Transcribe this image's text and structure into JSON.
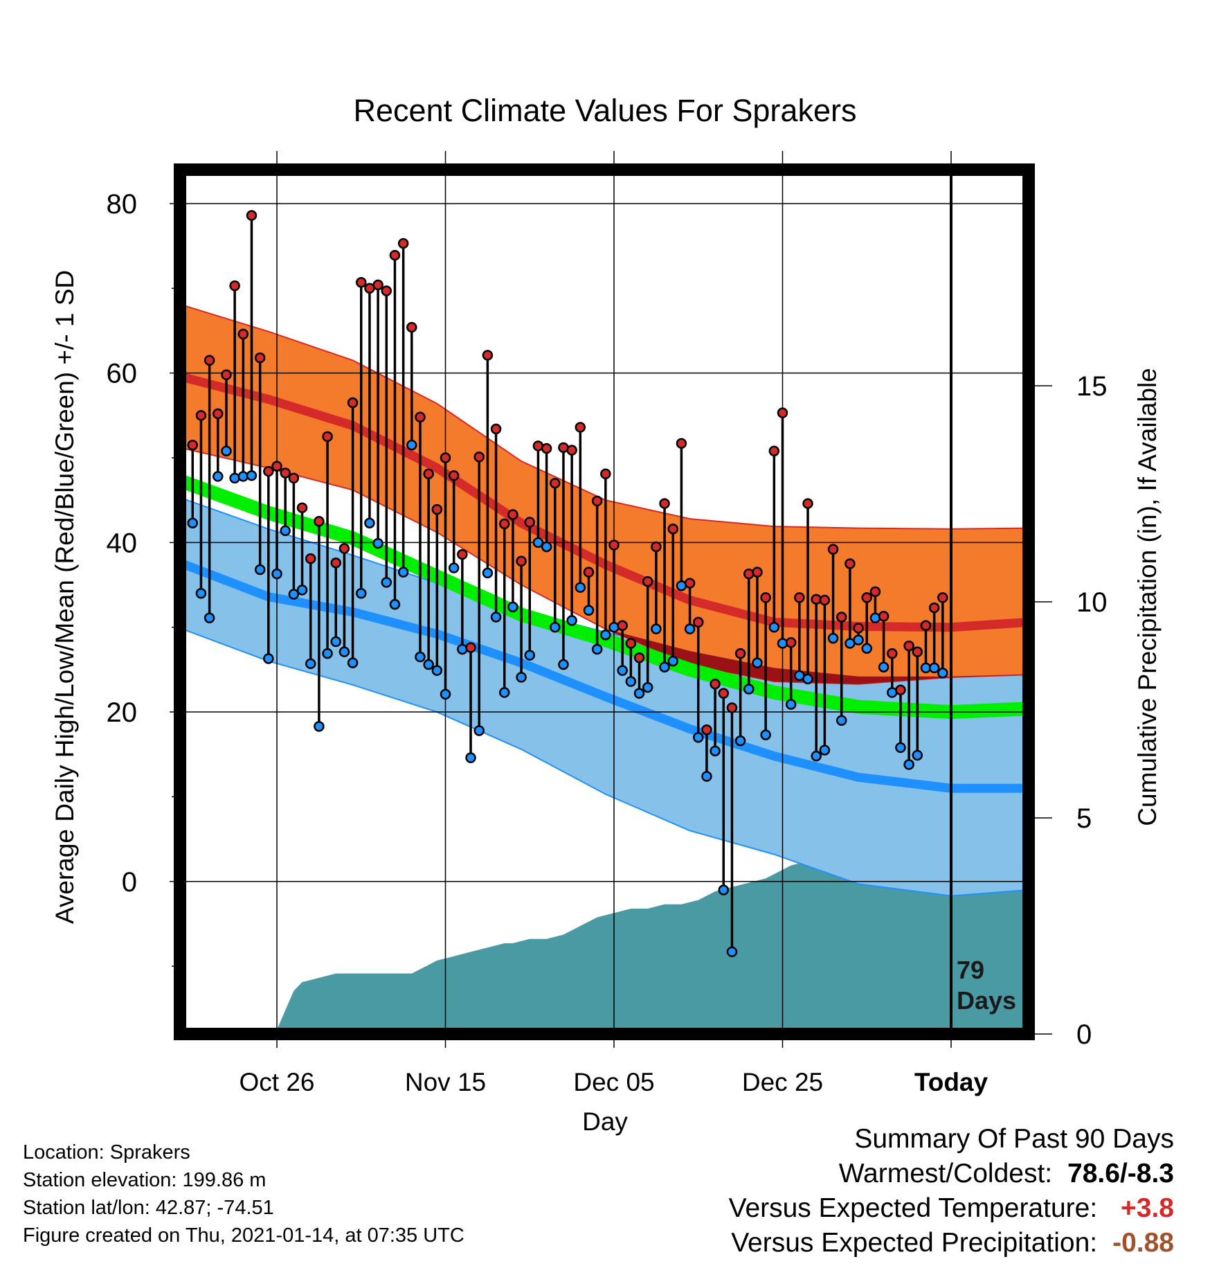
{
  "chart_data": {
    "type": "line",
    "title": "Recent Climate Values For Sprakers",
    "xlabel": "Day",
    "ylabel_left": "Average Daily High/Low/Mean (Red/Blue/Green) +/- 1 SD",
    "ylabel_right": "Cumulative Precipitation (in), If Available",
    "x_tick_labels": [
      "Oct 26",
      "Nov 15",
      "Dec 05",
      "Dec 25",
      "Today"
    ],
    "x_tick_days": [
      -80,
      -60,
      -40,
      -20,
      0
    ],
    "xlim": [
      -91.5,
      9.2
    ],
    "ylim_left": [
      -18,
      84
    ],
    "y_ticks_left": [
      0,
      20,
      40,
      60,
      80
    ],
    "ylim_right": [
      0,
      20
    ],
    "y_ticks_right": [
      0,
      5,
      10,
      15
    ],
    "grid": true,
    "today_marker": "79\nDays",
    "normals": {
      "days": [
        -91.5,
        -81,
        -71,
        -61,
        -51,
        -41,
        -31,
        -21,
        -11,
        0,
        9.2
      ],
      "high_mean": [
        59.6,
        56.9,
        53.8,
        48.8,
        42.3,
        37.4,
        33.2,
        30.6,
        30.1,
        30.0,
        30.6
      ],
      "high_sd_upper": [
        68.1,
        64.9,
        61.5,
        56.4,
        49.6,
        45.0,
        42.8,
        41.9,
        41.7,
        41.6,
        41.7
      ],
      "high_sd_lower": [
        51.2,
        48.8,
        46.2,
        41.2,
        35.0,
        29.8,
        25.6,
        23.6,
        23.3,
        24.1,
        24.4
      ],
      "low_mean": [
        37.6,
        33.6,
        31.8,
        29.2,
        25.8,
        21.8,
        18.0,
        14.8,
        12.3,
        11.0,
        11.0
      ],
      "low_sd_upper": [
        45.3,
        41.6,
        38.5,
        35.2,
        32.0,
        29.4,
        27.2,
        25.2,
        24.2,
        24.2,
        24.4
      ],
      "low_sd_lower": [
        29.9,
        26.0,
        23.2,
        20.0,
        15.6,
        10.3,
        6.0,
        3.2,
        -0.3,
        -1.7,
        -1.0
      ],
      "mean_mean": [
        47.3,
        43.5,
        40.5,
        36.0,
        31.5,
        28.5,
        25.0,
        22.3,
        20.6,
        20.0,
        20.4
      ]
    },
    "daily": {
      "start_day": -90,
      "highs": [
        51.5,
        55.0,
        61.5,
        55.2,
        59.8,
        70.3,
        64.6,
        78.6,
        61.8,
        48.4,
        49.0,
        48.2,
        47.6,
        44.1,
        38.1,
        42.5,
        52.5,
        37.6,
        39.3,
        56.5,
        70.7,
        70.0,
        70.4,
        69.7,
        73.9,
        75.3,
        65.4,
        54.8,
        48.1,
        43.9,
        50.0,
        47.9,
        38.6,
        27.6,
        50.1,
        62.1,
        53.4,
        42.2,
        43.3,
        37.8,
        42.4,
        51.4,
        51.1,
        47.0,
        51.2,
        50.9,
        53.6,
        36.5,
        44.9,
        48.1,
        39.7,
        30.2,
        28.1,
        26.4,
        35.4,
        39.5,
        44.6,
        41.6,
        51.7,
        35.2,
        30.6,
        17.9,
        23.3,
        22.2,
        20.5,
        26.9,
        36.3,
        36.5,
        33.5,
        50.8,
        55.3,
        28.2,
        33.5,
        44.6,
        33.3,
        33.2,
        39.2,
        31.2,
        37.5,
        29.9,
        33.5,
        34.2,
        31.3,
        26.9,
        22.6,
        27.8,
        27.1,
        30.2,
        32.3,
        33.5
      ],
      "lows": [
        42.3,
        34.0,
        31.1,
        47.8,
        50.8,
        47.6,
        47.8,
        47.9,
        36.8,
        26.3,
        36.3,
        41.4,
        33.9,
        34.4,
        25.7,
        18.3,
        26.9,
        28.3,
        27.1,
        25.8,
        34.0,
        42.3,
        39.9,
        35.3,
        32.7,
        36.5,
        51.5,
        26.5,
        25.6,
        24.9,
        22.1,
        37.0,
        27.4,
        14.6,
        17.8,
        36.4,
        31.2,
        22.3,
        32.4,
        24.1,
        26.7,
        40.0,
        39.5,
        30.0,
        25.6,
        30.8,
        34.7,
        32.0,
        27.4,
        29.1,
        30.0,
        24.9,
        23.6,
        22.2,
        22.9,
        29.8,
        25.3,
        26.0,
        34.9,
        29.8,
        17.0,
        12.4,
        15.4,
        -1.0,
        -8.3,
        16.6,
        22.7,
        25.8,
        17.3,
        30.0,
        28.1,
        20.9,
        24.3,
        23.9,
        14.8,
        15.5,
        28.7,
        19.0,
        28.1,
        28.5,
        27.5,
        31.1,
        25.3,
        22.3,
        15.8,
        13.8,
        14.9,
        25.2,
        25.2,
        24.6
      ]
    },
    "precip": {
      "days": [
        -91.5,
        -82,
        -80,
        -78,
        -77,
        -75,
        -73,
        -70,
        -68,
        -66,
        -64,
        -62,
        -61,
        -59,
        -57,
        -55,
        -53,
        -52,
        -50,
        -48,
        -46,
        -44,
        -42,
        -40,
        -38,
        -36,
        -34,
        -32,
        -30,
        -28,
        -26,
        -24,
        -22,
        -21,
        -20,
        -19,
        -17,
        -15,
        -14,
        -12,
        -11,
        -9,
        -8,
        -6,
        -4,
        -2,
        0,
        9.2
      ],
      "values": [
        0,
        0,
        0.1,
        1.0,
        1.2,
        1.3,
        1.4,
        1.4,
        1.4,
        1.4,
        1.4,
        1.6,
        1.7,
        1.8,
        1.9,
        2.0,
        2.1,
        2.1,
        2.2,
        2.2,
        2.3,
        2.5,
        2.7,
        2.8,
        2.9,
        2.9,
        3.0,
        3.0,
        3.1,
        3.3,
        3.4,
        3.5,
        3.6,
        3.7,
        3.8,
        3.9,
        4.0,
        4.1,
        4.2,
        4.3,
        4.5,
        4.9,
        5.2,
        5.5,
        5.8,
        6.2,
        6.5,
        6.6
      ]
    }
  },
  "footer": {
    "location": "Location: Sprakers",
    "elevation": "Station elevation: 199.86 m",
    "latlon": "Station lat/lon: 42.87; -74.51",
    "created": "Figure created on Thu, 2021-01-14, at 07:35 UTC"
  },
  "summary": {
    "heading": "Summary Of Past 90 Days",
    "warm_cold_label": "Warmest/Coldest:",
    "warm_cold_value": "78.6/-8.3",
    "temp_label": "Versus Expected Temperature:",
    "temp_value": "+3.8",
    "precip_label": "Versus Expected Precipitation:",
    "precip_value": "-0.88"
  },
  "colors": {
    "high_band": "#f47b2b",
    "high_line": "#d42a2a",
    "low_band": "#85c1e8",
    "low_line": "#1e90ff",
    "mean_band": "#00ee00",
    "overlap_band": "#9b1216",
    "precip_fill": "#4a9aa4",
    "high_dot": "#d42a2a",
    "low_dot": "#1e90ff",
    "temp_anomaly": "#d42a2a",
    "precip_anomaly": "#a0522d"
  }
}
